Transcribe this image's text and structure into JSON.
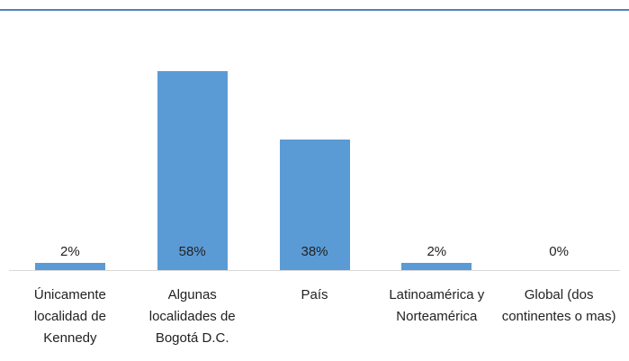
{
  "chart_data": {
    "type": "bar",
    "categories": [
      "Únicamente localidad de Kennedy",
      "Algunas localidades de Bogotá D.C.",
      "País",
      "Latinoamérica y Norteamérica",
      "Global (dos continentes o mas)"
    ],
    "values": [
      2,
      58,
      38,
      2,
      0
    ],
    "value_labels": [
      "2%",
      "58%",
      "38%",
      "2%",
      "0%"
    ],
    "color": "#5b9bd5",
    "ylim": [
      0,
      70
    ]
  }
}
